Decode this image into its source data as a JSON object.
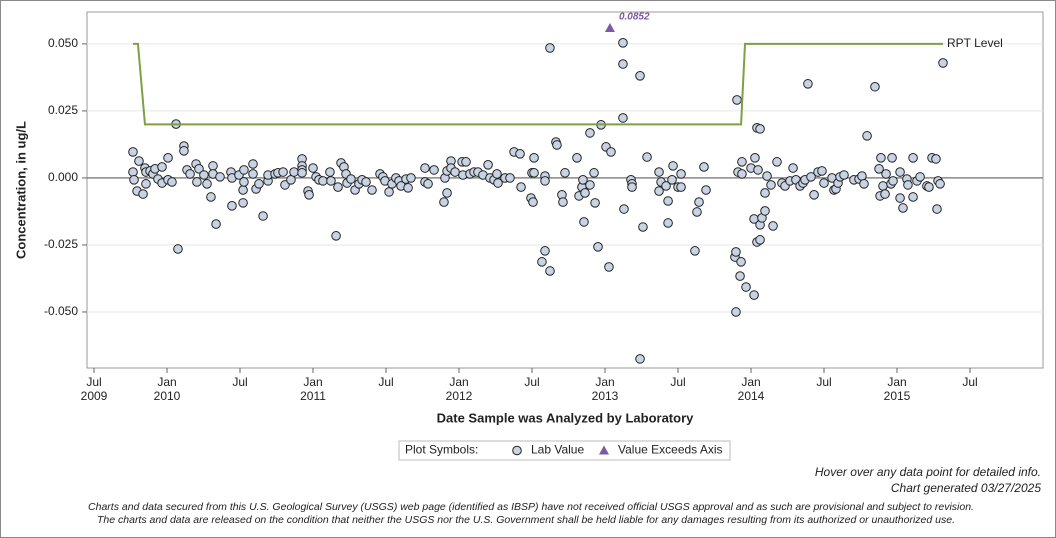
{
  "chart_data": {
    "type": "scatter",
    "ylabel": "Concentration, in ug/L",
    "xlabel": "Date Sample was Analyzed by Laboratory",
    "legend_title": "Plot Symbols:",
    "notes": [
      "Hover over any data point for detailed info.",
      "Chart generated 03/27/2025"
    ],
    "disclaimer": [
      "Charts and data secured from this U.S. Geological Survey (USGS) web page (identified as IBSP) have not received official USGS approval and as such are provisional and subject to revision.",
      "The charts and data are released on the condition that neither the USGS nor the U.S. Government shall be held liable for any damages resulting from its authorized or unauthorized use."
    ],
    "xlim": [
      2009.452,
      2016.0
    ],
    "ylim": [
      -0.0709,
      0.0619
    ],
    "xticks": [
      {
        "value": 2009.5,
        "label": "Jul",
        "sublabel": "2009"
      },
      {
        "value": 2010.0,
        "label": "Jan",
        "sublabel": "2010"
      },
      {
        "value": 2010.5,
        "label": "Jul"
      },
      {
        "value": 2011.0,
        "label": "Jan",
        "sublabel": "2011"
      },
      {
        "value": 2011.5,
        "label": "Jul"
      },
      {
        "value": 2012.0,
        "label": "Jan",
        "sublabel": "2012"
      },
      {
        "value": 2012.5,
        "label": "Jul"
      },
      {
        "value": 2013.0,
        "label": "Jan",
        "sublabel": "2013"
      },
      {
        "value": 2013.5,
        "label": "Jul"
      },
      {
        "value": 2014.0,
        "label": "Jan",
        "sublabel": "2014"
      },
      {
        "value": 2014.5,
        "label": "Jul"
      },
      {
        "value": 2015.0,
        "label": "Jan",
        "sublabel": "2015"
      },
      {
        "value": 2015.5,
        "label": "Jul"
      }
    ],
    "yticks": [
      {
        "value": -0.05,
        "label": "-0.050"
      },
      {
        "value": -0.025,
        "label": "-0.025"
      },
      {
        "value": 0,
        "label": "0.000"
      },
      {
        "value": 0.025,
        "label": "0.025"
      },
      {
        "value": 0.05,
        "label": "0.050"
      }
    ],
    "grid": true,
    "series": [
      {
        "name": "Lab Value",
        "kind": "points",
        "color": "#c8d3e4",
        "x": [
          2009.767,
          2009.767,
          2009.774,
          2009.795,
          2009.808,
          2009.836,
          2009.849,
          2009.856,
          2009.856,
          2009.884,
          2009.904,
          2009.918,
          2009.938,
          2009.966,
          2009.966,
          2010.007,
          2010.007,
          2010.034,
          2010.062,
          2010.075,
          2010.116,
          2010.116,
          2010.137,
          2010.158,
          2010.199,
          2010.205,
          2010.219,
          2010.253,
          2010.274,
          2010.301,
          2010.315,
          2010.315,
          2010.336,
          2010.363,
          2010.438,
          2010.445,
          2010.445,
          2010.493,
          2010.521,
          2010.521,
          2010.527,
          2010.527,
          2010.589,
          2010.589,
          2010.61,
          2010.63,
          2010.658,
          2010.692,
          2010.692,
          2010.74,
          2010.76,
          2010.795,
          2010.808,
          2010.849,
          2010.87,
          2010.925,
          2010.925,
          2010.925,
          2010.925,
          2010.966,
          2010.973,
          2011.0,
          2011.021,
          2011.041,
          2011.068,
          2011.116,
          2011.123,
          2011.158,
          2011.171,
          2011.192,
          2011.212,
          2011.226,
          2011.233,
          2011.26,
          2011.288,
          2011.315,
          2011.336,
          2011.363,
          2011.404,
          2011.459,
          2011.479,
          2011.493,
          2011.521,
          2011.541,
          2011.568,
          2011.589,
          2011.603,
          2011.637,
          2011.651,
          2011.671,
          2011.767,
          2011.767,
          2011.788,
          2011.829,
          2011.897,
          2011.904,
          2011.918,
          2011.918,
          2011.945,
          2011.945,
          2011.973,
          2012.021,
          2012.027,
          2012.048,
          2012.075,
          2012.103,
          2012.13,
          2012.164,
          2012.199,
          2012.212,
          2012.24,
          2012.26,
          2012.267,
          2012.315,
          2012.349,
          2012.377,
          2012.418,
          2012.425,
          2012.493,
          2012.5,
          2012.507,
          2012.514,
          2012.514,
          2012.568,
          2012.589,
          2012.589,
          2012.589,
          2012.623,
          2012.623,
          2012.664,
          2012.671,
          2012.705,
          2012.712,
          2012.726,
          2012.808,
          2012.822,
          2012.842,
          2012.849,
          2012.856,
          2012.863,
          2012.897,
          2012.897,
          2012.925,
          2012.932,
          2012.952,
          2012.973,
          2013.007,
          2013.027,
          2013.041,
          2013.123,
          2013.123,
          2013.123,
          2013.13,
          2013.178,
          2013.185,
          2013.185,
          2013.24,
          2013.24,
          2013.26,
          2013.288,
          2013.37,
          2013.37,
          2013.384,
          2013.418,
          2013.432,
          2013.432,
          2013.459,
          2013.466,
          2013.5,
          2013.521,
          2013.521,
          2013.616,
          2013.63,
          2013.644,
          2013.678,
          2013.692,
          2013.89,
          2013.897,
          2013.904,
          2013.897,
          2013.911,
          2013.925,
          2013.932,
          2013.938,
          2013.938,
          2013.966,
          2014.0,
          2014.021,
          2014.021,
          2014.027,
          2014.041,
          2014.041,
          2014.048,
          2014.062,
          2014.062,
          2014.062,
          2014.075,
          2014.096,
          2014.096,
          2014.11,
          2014.137,
          2014.151,
          2014.178,
          2014.212,
          2014.233,
          2014.267,
          2014.288,
          2014.308,
          2014.336,
          2014.356,
          2014.37,
          2014.39,
          2014.411,
          2014.432,
          2014.459,
          2014.486,
          2014.5,
          2014.555,
          2014.568,
          2014.582,
          2014.596,
          2014.61,
          2014.637,
          2014.705,
          2014.74,
          2014.76,
          2014.774,
          2014.795,
          2014.849,
          2014.877,
          2014.884,
          2014.89,
          2014.904,
          2014.918,
          2014.925,
          2014.959,
          2014.966,
          2014.973,
          2015.021,
          2015.021,
          2015.041,
          2015.068,
          2015.075,
          2015.11,
          2015.11,
          2015.137,
          2015.158,
          2015.205,
          2015.219,
          2015.24,
          2015.267,
          2015.274,
          2015.281,
          2015.295,
          2015.315
        ],
        "values": [
          0.0097,
          0.0022,
          -0.0007,
          -0.0049,
          0.0063,
          -0.006,
          0.0037,
          0.0022,
          -0.0022,
          0.0026,
          0.0015,
          0.0034,
          -0.0004,
          0.0041,
          -0.0019,
          0.0075,
          -0.0007,
          -0.0015,
          0.0201,
          -0.0265,
          0.0119,
          0.0101,
          0.003,
          0.0015,
          0.0052,
          -0.0015,
          0.0034,
          0.0011,
          -0.0022,
          -0.0071,
          0.0045,
          0.0015,
          -0.0172,
          0.0004,
          0.0022,
          0,
          -0.0104,
          0.0011,
          -0.0045,
          -0.0093,
          0.003,
          -0.0015,
          0.0052,
          0.0015,
          -0.0041,
          -0.0022,
          -0.0142,
          -0.0011,
          0.0011,
          0.0015,
          0.0019,
          0.0022,
          -0.0026,
          -0.0007,
          0.0022,
          0.0071,
          0.0045,
          0.003,
          0.0019,
          -0.0049,
          -0.0063,
          0.0037,
          0.0004,
          -0.0007,
          -0.0011,
          0.0022,
          -0.0011,
          -0.0216,
          -0.0034,
          0.0056,
          0.0041,
          0.0015,
          -0.0019,
          -0.0004,
          -0.0045,
          -0.0022,
          -0.0007,
          -0.0015,
          -0.0045,
          0.0015,
          0.0004,
          -0.0011,
          -0.0052,
          -0.0022,
          0,
          -0.0011,
          -0.003,
          -0.0004,
          -0.0037,
          0,
          0.0037,
          -0.0015,
          -0.0022,
          0.003,
          -0.009,
          0,
          0.0026,
          -0.0056,
          0.0063,
          0.0037,
          0.0022,
          0.006,
          0.0011,
          0.006,
          0.0015,
          0.0022,
          0.0022,
          0.0011,
          0.0049,
          0,
          -0.0007,
          0.0015,
          -0.0019,
          0,
          0,
          0.0097,
          0.009,
          -0.0034,
          -0.0075,
          0.0019,
          -0.009,
          0.0075,
          0.0019,
          -0.0313,
          -0.0272,
          0.0007,
          -0.0011,
          0.0485,
          -0.0347,
          0.0134,
          0.0123,
          -0.0063,
          -0.009,
          0.0019,
          0.0075,
          -0.0067,
          -0.0034,
          -0.0007,
          -0.0164,
          -0.0056,
          -0.0026,
          0.0168,
          0.0019,
          -0.0093,
          -0.0257,
          0.0198,
          0.0116,
          -0.0332,
          0.0097,
          0.0504,
          0.0425,
          0.0224,
          -0.0116,
          -0.0007,
          -0.0022,
          -0.0034,
          0.0381,
          -0.0675,
          -0.0183,
          0.0078,
          0.0022,
          -0.0049,
          -0.0015,
          -0.003,
          -0.0086,
          -0.0168,
          -0.0007,
          0.0045,
          -0.0034,
          0.0015,
          -0.0034,
          -0.0272,
          -0.0127,
          -0.009,
          0.0041,
          -0.0045,
          -0.0295,
          -0.0276,
          0.0291,
          -0.05,
          0.0022,
          -0.0366,
          -0.0313,
          0.006,
          0.0015,
          -0.0407,
          0.0037,
          -0.0437,
          -0.0153,
          0.0075,
          0.0187,
          -0.0239,
          0.003,
          0.0183,
          -0.0231,
          -0.0175,
          -0.0149,
          -0.0123,
          -0.0056,
          0.0007,
          -0.0026,
          -0.0179,
          0.006,
          -0.0019,
          -0.003,
          -0.0011,
          0.0037,
          -0.0007,
          -0.003,
          -0.0019,
          -0.0007,
          0.0351,
          0.0004,
          -0.0063,
          0.0022,
          0.0026,
          -0.0019,
          0,
          -0.0045,
          -0.0041,
          -0.0019,
          0.0004,
          0.0011,
          -0.0007,
          -0.0004,
          0.0007,
          -0.0022,
          0.0157,
          0.034,
          0.0034,
          -0.0067,
          0.0075,
          -0.003,
          -0.006,
          0.0015,
          -0.0022,
          0.0075,
          -0.0011,
          0.0022,
          -0.0075,
          -0.0112,
          -0.0004,
          -0.0026,
          0.0075,
          -0.0071,
          -0.0011,
          0.0004,
          -0.003,
          -0.0034,
          0.0075,
          0.0071,
          -0.0116,
          -0.0011,
          -0.0022,
          0.0429
        ]
      },
      {
        "name": "RPT Level",
        "kind": "line",
        "color": "#7da044",
        "x": [
          2009.767,
          2009.801,
          2009.849,
          2013.932,
          2013.959,
          2015.315
        ],
        "values": [
          0.05,
          0.05,
          0.02,
          0.02,
          0.05,
          0.05
        ]
      },
      {
        "name": "Value Exceeds Axis",
        "kind": "exceeds",
        "color": "#7b5aa6",
        "x": [
          2013.034
        ],
        "values": [
          0.0852
        ],
        "value_labels": [
          "0.0852"
        ]
      }
    ]
  }
}
